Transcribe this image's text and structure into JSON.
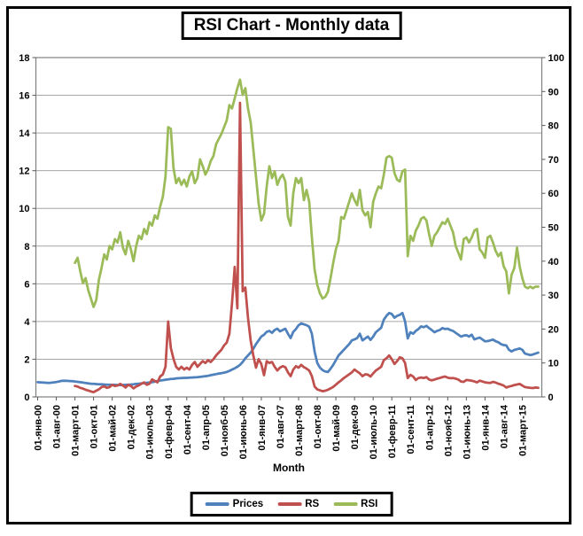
{
  "title": "RSI Chart - Monthly data",
  "x_axis": {
    "label": "Month"
  },
  "legend": [
    {
      "label": "Prices",
      "color": "#4F81BD"
    },
    {
      "label": "RS",
      "color": "#C0504D"
    },
    {
      "label": "RSI",
      "color": "#9BBB59"
    }
  ],
  "colors": {
    "grid": "#A6A6A6",
    "plot_border": "#808080",
    "text": "#000000",
    "background": "#FFFFFF"
  },
  "chart_data": {
    "type": "line",
    "title": "RSI Chart - Monthly data",
    "xlabel": "Month",
    "grid": "horizontal",
    "legend_position": "bottom",
    "months_total": 189,
    "x_tick_step_months": 7,
    "x_tick_labels": [
      "01-янв-00",
      "01-авг-00",
      "01-март-01",
      "01-окт-01",
      "01-май-02",
      "01-дек-02",
      "01-июль-03",
      "01-февр-04",
      "01-сент-04",
      "01-апр-05",
      "01-нояб-05",
      "01-июнь-06",
      "01-янв-07",
      "01-авг-07",
      "01-март-08",
      "01-окт-08",
      "01-май-09",
      "01-дек-09",
      "01-июль-10",
      "01-февр-11",
      "01-сент-11",
      "01-апр-12",
      "01-нояб-12",
      "01-июнь-13",
      "01-янв-14",
      "01-авг-14",
      "01-март-15"
    ],
    "axes": {
      "left": {
        "range": [
          0,
          18
        ],
        "ticks": [
          0,
          2,
          4,
          6,
          8,
          10,
          12,
          14,
          16,
          18
        ],
        "series": [
          "Prices",
          "RS"
        ]
      },
      "right": {
        "range": [
          0,
          100
        ],
        "ticks": [
          0,
          10,
          20,
          30,
          40,
          50,
          60,
          70,
          80,
          90,
          100
        ],
        "series": [
          "RSI"
        ]
      }
    },
    "draw_order": [
      "Prices",
      "RSI",
      "RS"
    ],
    "series": [
      {
        "name": "Prices",
        "axis": "left",
        "color": "#4F81BD",
        "start_month_index": 0,
        "values": [
          0.78,
          0.77,
          0.76,
          0.75,
          0.74,
          0.75,
          0.77,
          0.79,
          0.82,
          0.85,
          0.86,
          0.85,
          0.84,
          0.83,
          0.82,
          0.8,
          0.78,
          0.76,
          0.74,
          0.72,
          0.7,
          0.69,
          0.68,
          0.67,
          0.67,
          0.66,
          0.65,
          0.65,
          0.64,
          0.64,
          0.63,
          0.63,
          0.63,
          0.64,
          0.65,
          0.66,
          0.67,
          0.69,
          0.7,
          0.72,
          0.73,
          0.75,
          0.76,
          0.78,
          0.81,
          0.84,
          0.87,
          0.89,
          0.91,
          0.93,
          0.95,
          0.96,
          0.98,
          0.99,
          1.0,
          1.01,
          1.01,
          1.02,
          1.03,
          1.04,
          1.05,
          1.06,
          1.08,
          1.1,
          1.12,
          1.15,
          1.18,
          1.21,
          1.24,
          1.26,
          1.29,
          1.32,
          1.38,
          1.45,
          1.52,
          1.6,
          1.7,
          1.85,
          2.05,
          2.2,
          2.35,
          2.55,
          2.8,
          3.0,
          3.2,
          3.3,
          3.45,
          3.5,
          3.4,
          3.55,
          3.62,
          3.48,
          3.55,
          3.62,
          3.35,
          3.12,
          3.45,
          3.6,
          3.8,
          3.9,
          3.85,
          3.8,
          3.72,
          3.35,
          2.4,
          1.8,
          1.55,
          1.42,
          1.35,
          1.32,
          1.5,
          1.7,
          1.95,
          2.2,
          2.35,
          2.5,
          2.65,
          2.8,
          3.0,
          3.05,
          3.12,
          3.35,
          3.0,
          3.1,
          3.2,
          3.02,
          3.2,
          3.43,
          3.55,
          3.67,
          4.1,
          4.3,
          4.45,
          4.4,
          4.2,
          4.3,
          4.35,
          4.45,
          4.0,
          3.1,
          3.43,
          3.35,
          3.5,
          3.6,
          3.74,
          3.7,
          3.77,
          3.65,
          3.55,
          3.43,
          3.5,
          3.55,
          3.65,
          3.6,
          3.62,
          3.55,
          3.5,
          3.4,
          3.3,
          3.2,
          3.25,
          3.27,
          3.2,
          3.3,
          3.05,
          3.1,
          3.15,
          3.05,
          2.95,
          2.96,
          3.0,
          3.04,
          2.95,
          2.9,
          2.8,
          2.75,
          2.73,
          2.5,
          2.41,
          2.49,
          2.53,
          2.57,
          2.5,
          2.3,
          2.26,
          2.22,
          2.25,
          2.3,
          2.35
        ]
      },
      {
        "name": "RS",
        "axis": "left",
        "color": "#C0504D",
        "start_month_index": 14,
        "values": [
          0.58,
          0.55,
          0.48,
          0.44,
          0.38,
          0.34,
          0.29,
          0.25,
          0.33,
          0.4,
          0.52,
          0.56,
          0.48,
          0.52,
          0.64,
          0.58,
          0.6,
          0.69,
          0.6,
          0.5,
          0.64,
          0.58,
          0.45,
          0.55,
          0.61,
          0.7,
          0.77,
          0.64,
          0.7,
          0.93,
          0.85,
          0.77,
          1.08,
          1.2,
          1.6,
          4.0,
          2.6,
          2.02,
          1.6,
          1.45,
          1.6,
          1.45,
          1.55,
          1.45,
          1.7,
          1.85,
          1.6,
          1.75,
          1.9,
          1.8,
          1.95,
          1.85,
          2.0,
          2.2,
          2.35,
          2.5,
          2.73,
          2.88,
          3.35,
          5.0,
          6.9,
          4.7,
          15.6,
          5.6,
          5.8,
          4.2,
          3.0,
          2.2,
          1.55,
          2.0,
          1.75,
          1.15,
          1.9,
          1.8,
          1.85,
          1.6,
          1.4,
          1.55,
          1.63,
          1.58,
          1.3,
          1.1,
          1.45,
          1.63,
          1.55,
          1.7,
          1.58,
          1.5,
          1.4,
          1.1,
          0.55,
          0.4,
          0.35,
          0.3,
          0.33,
          0.38,
          0.45,
          0.53,
          0.65,
          0.77,
          0.88,
          1.0,
          1.1,
          1.2,
          1.3,
          1.45,
          1.35,
          1.25,
          1.1,
          1.2,
          1.18,
          1.08,
          1.25,
          1.4,
          1.5,
          1.6,
          1.95,
          2.05,
          2.2,
          2.0,
          1.75,
          1.9,
          2.1,
          2.05,
          1.8,
          1.0,
          1.17,
          1.08,
          0.9,
          1.0,
          1.03,
          1.0,
          1.05,
          0.92,
          0.88,
          0.92,
          0.97,
          1.0,
          1.05,
          1.08,
          1.02,
          0.99,
          1.0,
          0.97,
          0.92,
          0.82,
          0.8,
          0.9,
          0.88,
          0.86,
          0.82,
          0.77,
          0.86,
          0.82,
          0.77,
          0.75,
          0.74,
          0.8,
          0.76,
          0.7,
          0.66,
          0.6,
          0.5,
          0.55,
          0.58,
          0.63,
          0.66,
          0.69,
          0.6,
          0.52,
          0.5,
          0.48,
          0.47,
          0.5,
          0.48
        ]
      },
      {
        "name": "RSI",
        "axis": "right",
        "color": "#9BBB59",
        "start_month_index": 14,
        "values": [
          39.5,
          41,
          37,
          33.5,
          35,
          31.5,
          29,
          26.5,
          28.5,
          34.5,
          38,
          42,
          40.5,
          44.5,
          43.5,
          46.5,
          45.5,
          48.5,
          44,
          42,
          46,
          43.5,
          40,
          44.5,
          47.5,
          46.5,
          49.5,
          48,
          51.5,
          50.5,
          53.5,
          52.5,
          56,
          59,
          65,
          79.5,
          79,
          67.5,
          63,
          64.5,
          62.5,
          64,
          62,
          65,
          66.5,
          63,
          64.5,
          70,
          68,
          65.5,
          67,
          69.5,
          71,
          74.5,
          76,
          77.5,
          79.5,
          81.5,
          86,
          85,
          88,
          91,
          93.5,
          89,
          91,
          85,
          81,
          73,
          65,
          57,
          52,
          54,
          62,
          68,
          64.5,
          66.5,
          62.5,
          64.5,
          65.5,
          63.5,
          53,
          50.5,
          60,
          64.5,
          63,
          64.5,
          58,
          61,
          57.5,
          47,
          37.5,
          33,
          30.5,
          29,
          29.5,
          31,
          35,
          39.5,
          43.5,
          46,
          53,
          52.5,
          55,
          57.5,
          60,
          58,
          56.5,
          61,
          55,
          53.5,
          54.5,
          50,
          57.5,
          60,
          62,
          61.5,
          65.5,
          70.5,
          71,
          70.5,
          66,
          64,
          63.5,
          66.5,
          67,
          41.5,
          47.5,
          46,
          49,
          50.5,
          52.5,
          53,
          52,
          48,
          44.5,
          47.5,
          48.5,
          50,
          51.5,
          51,
          52.5,
          50.5,
          48.5,
          44.5,
          42.5,
          40.5,
          46.5,
          47,
          45.5,
          47,
          49,
          49.5,
          43.5,
          42.5,
          41,
          47,
          47.5,
          45.5,
          43,
          41.5,
          42.5,
          38.5,
          37,
          30.5,
          36,
          38,
          44,
          38.5,
          35,
          32.5,
          32,
          32.5,
          32,
          32.5,
          32.5
        ]
      }
    ]
  }
}
